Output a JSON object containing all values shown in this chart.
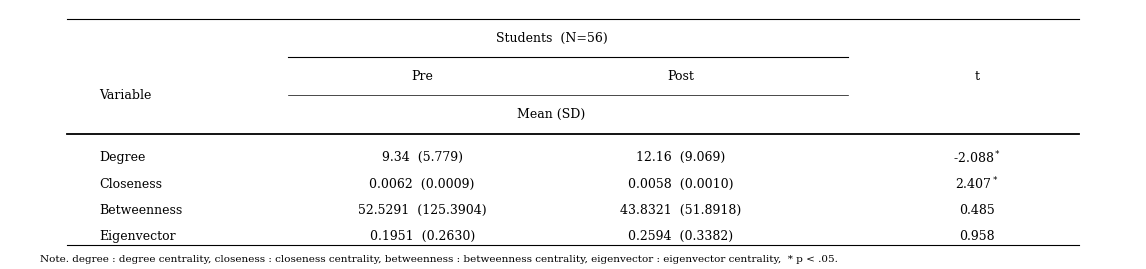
{
  "title_row": "Students  (N=56)",
  "col_headers": [
    "Pre",
    "Post",
    "t"
  ],
  "subheader": "Mean (SD)",
  "variable_label": "Variable",
  "rows": [
    {
      "variable": "Degree",
      "pre": "9.34  (5.779)",
      "post": "12.16  (9.069)",
      "t_base": "-2.088",
      "t_star": true
    },
    {
      "variable": "Closeness",
      "pre": "0.0062  (0.0009)",
      "post": "0.0058  (0.0010)",
      "t_base": "2.407",
      "t_star": true
    },
    {
      "variable": "Betweenness",
      "pre": "52.5291  (125.3904)",
      "post": "43.8321  (51.8918)",
      "t_base": "0.485",
      "t_star": false
    },
    {
      "variable": "Eigenvector",
      "pre": "0.1951  (0.2630)",
      "post": "0.2594  (0.3382)",
      "t_base": "0.958",
      "t_star": false
    }
  ],
  "note": "Note. degree : degree centrality, closeness : closeness centrality, betweenness : betweenness centrality, eigenvector : eigenvector centrality,  * p < .05.",
  "bg_color": "#ffffff",
  "text_color": "#000000",
  "font_size": 9,
  "note_font_size": 7.5
}
